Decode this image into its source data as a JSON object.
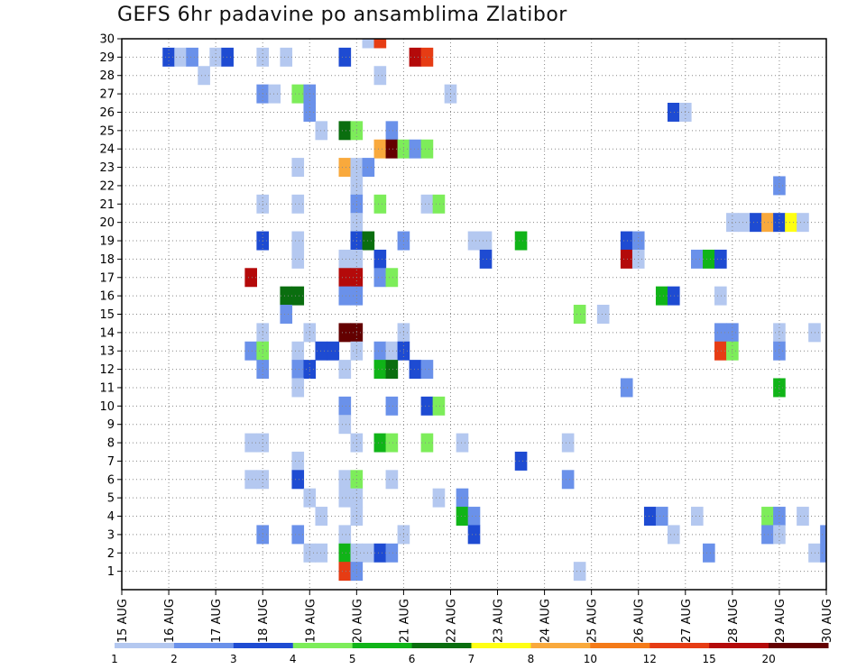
{
  "chart_data": {
    "type": "heatmap",
    "title": "GEFS 6hr padavine po ansamblima Zlatibor",
    "x_tick_labels": [
      "15 AUG",
      "16 AUG",
      "17 AUG",
      "18 AUG",
      "19 AUG",
      "20 AUG",
      "21 AUG",
      "22 AUG",
      "23 AUG",
      "24 AUG",
      "25 AUG",
      "26 AUG",
      "27 AUG",
      "28 AUG",
      "29 AUG",
      "30 AUG"
    ],
    "y_tick_labels": [
      "1",
      "2",
      "3",
      "4",
      "5",
      "6",
      "7",
      "8",
      "9",
      "10",
      "11",
      "12",
      "13",
      "14",
      "15",
      "16",
      "17",
      "18",
      "19",
      "20",
      "21",
      "22",
      "23",
      "24",
      "25",
      "26",
      "27",
      "28",
      "29",
      "30"
    ],
    "x_range_days": [
      0,
      15
    ],
    "y_range": [
      0,
      30
    ],
    "time_step_hours": 6,
    "grid": "dotted",
    "colorbar": {
      "levels": [
        "1",
        "2",
        "3",
        "4",
        "5",
        "6",
        "7",
        "8",
        "10",
        "12",
        "15",
        "20"
      ],
      "colors": [
        "#b4c8f0",
        "#6a91ea",
        "#1e4bd2",
        "#7ded5a",
        "#10b418",
        "#0a6e0f",
        "#ffff14",
        "#f9a93c",
        "#f47a18",
        "#e63c14",
        "#b40a0a",
        "#640000"
      ]
    },
    "cells": [
      [
        29,
        3.0,
        1
      ],
      [
        29,
        3.5,
        1
      ],
      [
        29,
        1.0,
        3
      ],
      [
        29,
        1.25,
        1
      ],
      [
        29,
        1.5,
        2
      ],
      [
        29,
        2.0,
        1
      ],
      [
        29,
        2.25,
        3
      ],
      [
        29,
        4.75,
        3
      ],
      [
        29,
        6.25,
        15
      ],
      [
        29,
        6.5,
        12
      ],
      [
        30,
        5.25,
        1
      ],
      [
        30,
        5.5,
        12
      ],
      [
        28,
        1.75,
        1
      ],
      [
        28,
        5.5,
        1
      ],
      [
        27,
        3.0,
        2
      ],
      [
        27,
        3.25,
        1
      ],
      [
        27,
        3.75,
        4
      ],
      [
        27,
        4.0,
        2
      ],
      [
        27,
        7.0,
        1
      ],
      [
        26,
        4.0,
        2
      ],
      [
        26,
        11.75,
        3
      ],
      [
        26,
        12.0,
        1
      ],
      [
        25,
        4.25,
        1
      ],
      [
        25,
        4.75,
        6
      ],
      [
        25,
        5.0,
        4
      ],
      [
        25,
        5.75,
        2
      ],
      [
        24,
        5.5,
        8
      ],
      [
        24,
        5.75,
        20
      ],
      [
        24,
        6.0,
        4
      ],
      [
        24,
        6.25,
        2
      ],
      [
        24,
        6.5,
        4
      ],
      [
        23,
        3.75,
        1
      ],
      [
        23,
        4.75,
        8
      ],
      [
        23,
        5.0,
        1
      ],
      [
        23,
        5.25,
        2
      ],
      [
        22,
        5.0,
        1
      ],
      [
        22,
        14.0,
        2
      ],
      [
        21,
        3.0,
        1
      ],
      [
        21,
        3.75,
        1
      ],
      [
        21,
        5.0,
        2
      ],
      [
        21,
        5.5,
        4
      ],
      [
        21,
        6.5,
        1
      ],
      [
        21,
        6.75,
        4
      ],
      [
        20,
        5.0,
        1
      ],
      [
        20,
        13.0,
        1
      ],
      [
        20,
        13.25,
        1
      ],
      [
        20,
        13.5,
        3
      ],
      [
        20,
        13.75,
        8
      ],
      [
        20,
        14.0,
        3
      ],
      [
        20,
        14.25,
        7
      ],
      [
        20,
        14.5,
        1
      ],
      [
        19,
        3.0,
        3
      ],
      [
        19,
        3.75,
        1
      ],
      [
        19,
        5.0,
        3
      ],
      [
        19,
        5.25,
        6
      ],
      [
        19,
        6.0,
        2
      ],
      [
        19,
        7.5,
        1
      ],
      [
        19,
        7.75,
        1
      ],
      [
        19,
        8.5,
        5
      ],
      [
        19,
        10.75,
        3
      ],
      [
        19,
        11.0,
        2
      ],
      [
        18,
        3.75,
        1
      ],
      [
        18,
        4.75,
        1
      ],
      [
        18,
        5.0,
        1
      ],
      [
        18,
        5.5,
        3
      ],
      [
        18,
        7.75,
        3
      ],
      [
        18,
        10.75,
        15
      ],
      [
        18,
        11.0,
        1
      ],
      [
        18,
        12.25,
        2
      ],
      [
        18,
        12.5,
        5
      ],
      [
        18,
        12.75,
        3
      ],
      [
        17,
        2.75,
        15
      ],
      [
        17,
        4.75,
        15
      ],
      [
        17,
        5.0,
        15
      ],
      [
        17,
        5.5,
        2
      ],
      [
        17,
        5.75,
        4
      ],
      [
        16,
        3.5,
        6
      ],
      [
        16,
        3.75,
        6
      ],
      [
        16,
        4.75,
        2
      ],
      [
        16,
        5.0,
        2
      ],
      [
        16,
        11.5,
        5
      ],
      [
        16,
        11.75,
        3
      ],
      [
        16,
        12.75,
        1
      ],
      [
        15,
        3.5,
        2
      ],
      [
        15,
        9.75,
        4
      ],
      [
        15,
        10.25,
        1
      ],
      [
        14,
        3.0,
        1
      ],
      [
        14,
        4.0,
        1
      ],
      [
        14,
        4.75,
        20
      ],
      [
        14,
        5.0,
        20
      ],
      [
        14,
        6.0,
        1
      ],
      [
        14,
        12.75,
        2
      ],
      [
        14,
        13.0,
        2
      ],
      [
        14,
        14.0,
        1
      ],
      [
        14,
        14.75,
        1
      ],
      [
        13,
        2.75,
        2
      ],
      [
        13,
        3.0,
        4
      ],
      [
        13,
        3.75,
        1
      ],
      [
        13,
        4.25,
        3
      ],
      [
        13,
        4.5,
        3
      ],
      [
        13,
        5.0,
        1
      ],
      [
        13,
        5.5,
        2
      ],
      [
        13,
        5.75,
        1
      ],
      [
        13,
        6.0,
        3
      ],
      [
        13,
        12.75,
        12
      ],
      [
        13,
        13.0,
        4
      ],
      [
        13,
        14.0,
        2
      ],
      [
        12,
        3.0,
        2
      ],
      [
        12,
        3.75,
        2
      ],
      [
        12,
        4.0,
        3
      ],
      [
        12,
        4.75,
        1
      ],
      [
        12,
        5.5,
        5
      ],
      [
        12,
        5.75,
        6
      ],
      [
        12,
        6.25,
        3
      ],
      [
        12,
        6.5,
        2
      ],
      [
        11,
        3.75,
        1
      ],
      [
        11,
        10.75,
        2
      ],
      [
        11,
        14.0,
        5
      ],
      [
        10,
        4.75,
        2
      ],
      [
        10,
        5.75,
        2
      ],
      [
        10,
        6.5,
        3
      ],
      [
        10,
        6.75,
        4
      ],
      [
        9,
        4.75,
        1
      ],
      [
        8,
        2.75,
        1
      ],
      [
        8,
        3.0,
        1
      ],
      [
        8,
        5.0,
        1
      ],
      [
        8,
        5.5,
        5
      ],
      [
        8,
        5.75,
        4
      ],
      [
        8,
        6.5,
        4
      ],
      [
        8,
        7.25,
        1
      ],
      [
        8,
        9.5,
        1
      ],
      [
        7,
        3.75,
        1
      ],
      [
        7,
        8.5,
        3
      ],
      [
        6,
        2.75,
        1
      ],
      [
        6,
        3.0,
        1
      ],
      [
        6,
        3.75,
        3
      ],
      [
        6,
        4.75,
        1
      ],
      [
        6,
        5.0,
        4
      ],
      [
        6,
        5.75,
        1
      ],
      [
        6,
        9.5,
        2
      ],
      [
        5,
        4.0,
        1
      ],
      [
        5,
        4.75,
        1
      ],
      [
        5,
        5.0,
        1
      ],
      [
        5,
        6.75,
        1
      ],
      [
        5,
        7.25,
        2
      ],
      [
        4,
        4.25,
        1
      ],
      [
        4,
        5.0,
        1
      ],
      [
        4,
        7.25,
        5
      ],
      [
        4,
        7.5,
        2
      ],
      [
        4,
        11.25,
        3
      ],
      [
        4,
        11.5,
        2
      ],
      [
        4,
        12.25,
        1
      ],
      [
        4,
        13.75,
        4
      ],
      [
        4,
        14.0,
        2
      ],
      [
        4,
        14.5,
        1
      ],
      [
        3,
        3.0,
        2
      ],
      [
        3,
        3.75,
        2
      ],
      [
        3,
        4.75,
        1
      ],
      [
        3,
        6.0,
        1
      ],
      [
        3,
        7.5,
        3
      ],
      [
        3,
        11.75,
        1
      ],
      [
        3,
        13.75,
        2
      ],
      [
        3,
        14.0,
        1
      ],
      [
        3,
        15.0,
        2
      ],
      [
        2,
        4.0,
        1
      ],
      [
        2,
        4.25,
        1
      ],
      [
        2,
        4.75,
        5
      ],
      [
        2,
        5.0,
        1
      ],
      [
        2,
        5.25,
        1
      ],
      [
        2,
        5.5,
        3
      ],
      [
        2,
        5.75,
        2
      ],
      [
        2,
        12.5,
        2
      ],
      [
        2,
        14.75,
        1
      ],
      [
        2,
        15.0,
        2
      ],
      [
        1,
        4.75,
        12
      ],
      [
        1,
        5.0,
        2
      ],
      [
        1,
        9.75,
        1
      ]
    ]
  }
}
